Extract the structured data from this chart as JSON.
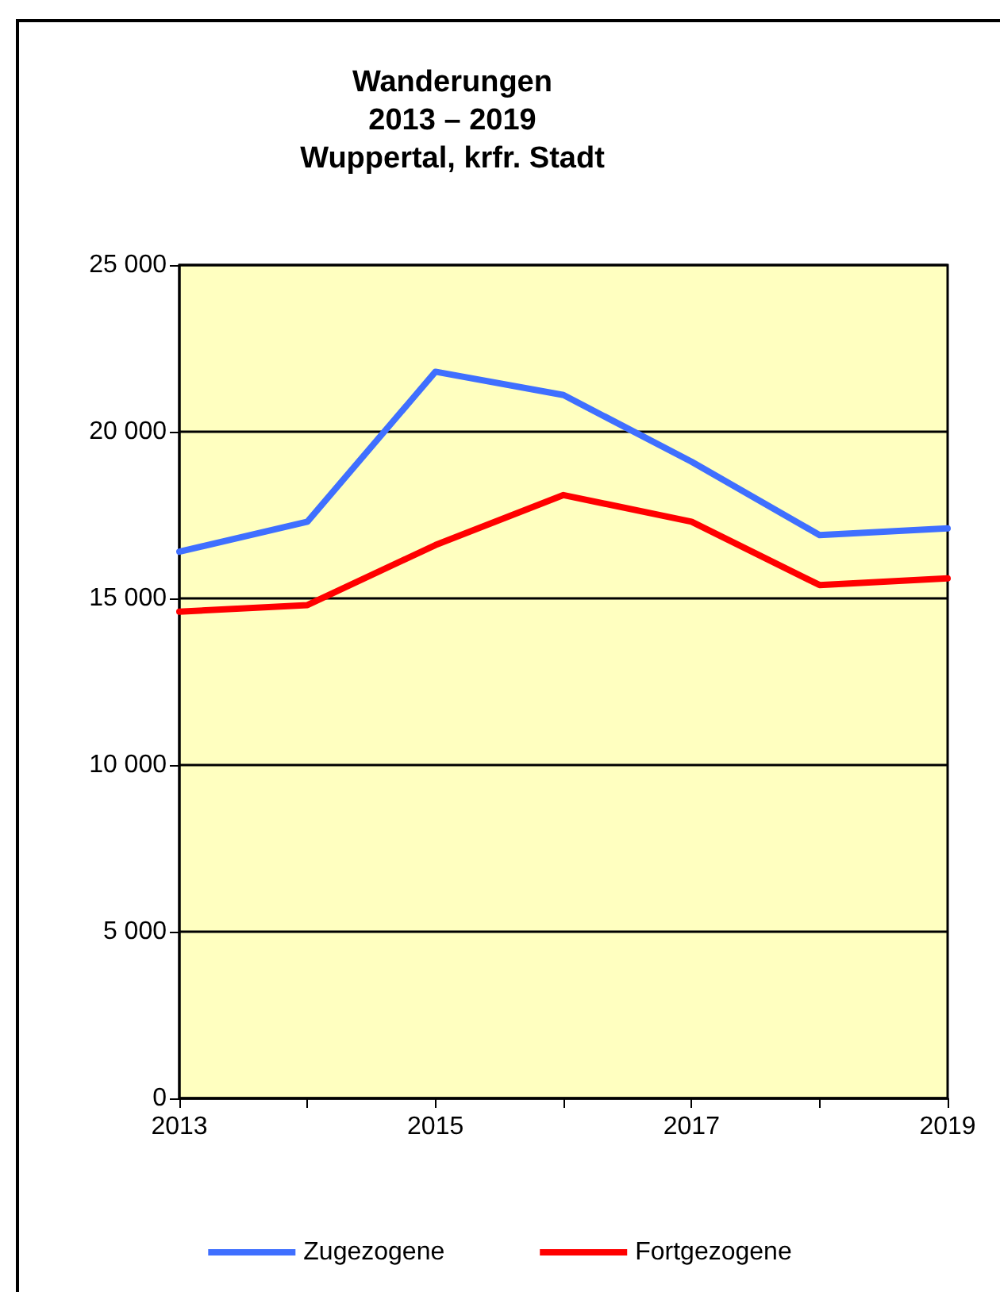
{
  "chart_data": {
    "type": "line",
    "title": "Wanderungen\n2013 – 2019\nWuppertal, krfr. Stadt",
    "x": [
      2013,
      2014,
      2015,
      2016,
      2017,
      2018,
      2019
    ],
    "series": [
      {
        "name": "Zugezogene",
        "color": "#3f6fff",
        "values": [
          16400,
          17300,
          21800,
          21100,
          19100,
          16900,
          17100
        ]
      },
      {
        "name": "Fortgezogene",
        "color": "#ff0000",
        "values": [
          14600,
          14800,
          16600,
          18100,
          17300,
          15400,
          15600
        ]
      }
    ],
    "xlim": [
      2013,
      2019
    ],
    "xticks": [
      2013,
      {
        "value": 2014,
        "label": null
      },
      2015,
      {
        "value": 2016,
        "label": null
      },
      2017,
      {
        "value": 2018,
        "label": null
      },
      2019
    ],
    "ylim": [
      0,
      25000
    ],
    "yticks": [
      0,
      {
        "value": 5000,
        "label": "5 000"
      },
      {
        "value": 10000,
        "label": "10 000"
      },
      {
        "value": 15000,
        "label": "15 000"
      },
      {
        "value": 20000,
        "label": "20 000"
      },
      {
        "value": 25000,
        "label": "25 000"
      }
    ],
    "grid": "y",
    "legend": "bottom",
    "marker": "none",
    "line_style": "solid"
  }
}
